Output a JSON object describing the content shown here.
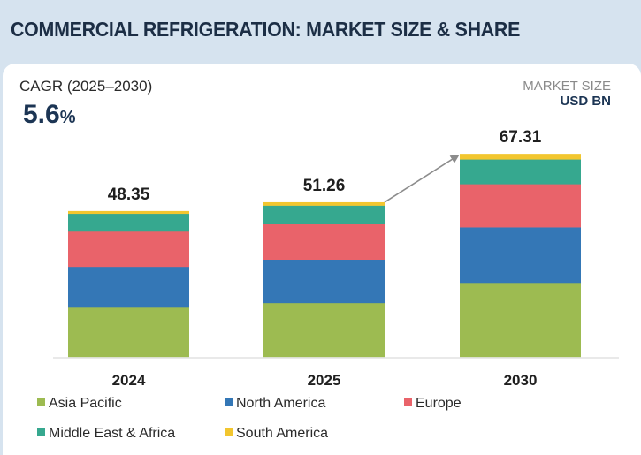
{
  "header": {
    "title": "COMMERCIAL REFRIGERATION: MARKET SIZE & SHARE"
  },
  "cagr": {
    "label": "CAGR (2025–2030)",
    "value": "5.6",
    "unit": "%"
  },
  "market_size": {
    "label": "MARKET SIZE",
    "unit": "USD BN"
  },
  "chart_data": {
    "type": "bar",
    "stacked": true,
    "title": "COMMERCIAL REFRIGERATION: MARKET SIZE & SHARE",
    "ylabel": "Market Size (USD BN)",
    "xlabel": "",
    "categories": [
      "2024",
      "2025",
      "2030"
    ],
    "totals": [
      48.35,
      51.26,
      67.31
    ],
    "total_labels": [
      "48.35",
      "51.26",
      "67.31"
    ],
    "ylim": [
      0,
      70
    ],
    "grid": false,
    "legend_position": "bottom",
    "annotation": "arrow from 2025 to 2030 indicating growth",
    "series": [
      {
        "name": "Asia Pacific",
        "color": "#9dbb51",
        "values": [
          16.4,
          17.9,
          24.6
        ]
      },
      {
        "name": "North America",
        "color": "#3477b6",
        "values": [
          13.5,
          14.4,
          18.4
        ]
      },
      {
        "name": "Europe",
        "color": "#e9636a",
        "values": [
          11.7,
          12.0,
          14.3
        ]
      },
      {
        "name": "Middle East & Africa",
        "color": "#36a88f",
        "values": [
          5.9,
          5.9,
          8.2
        ]
      },
      {
        "name": "South America",
        "color": "#f2c62f",
        "values": [
          0.85,
          1.06,
          1.81
        ]
      }
    ]
  }
}
